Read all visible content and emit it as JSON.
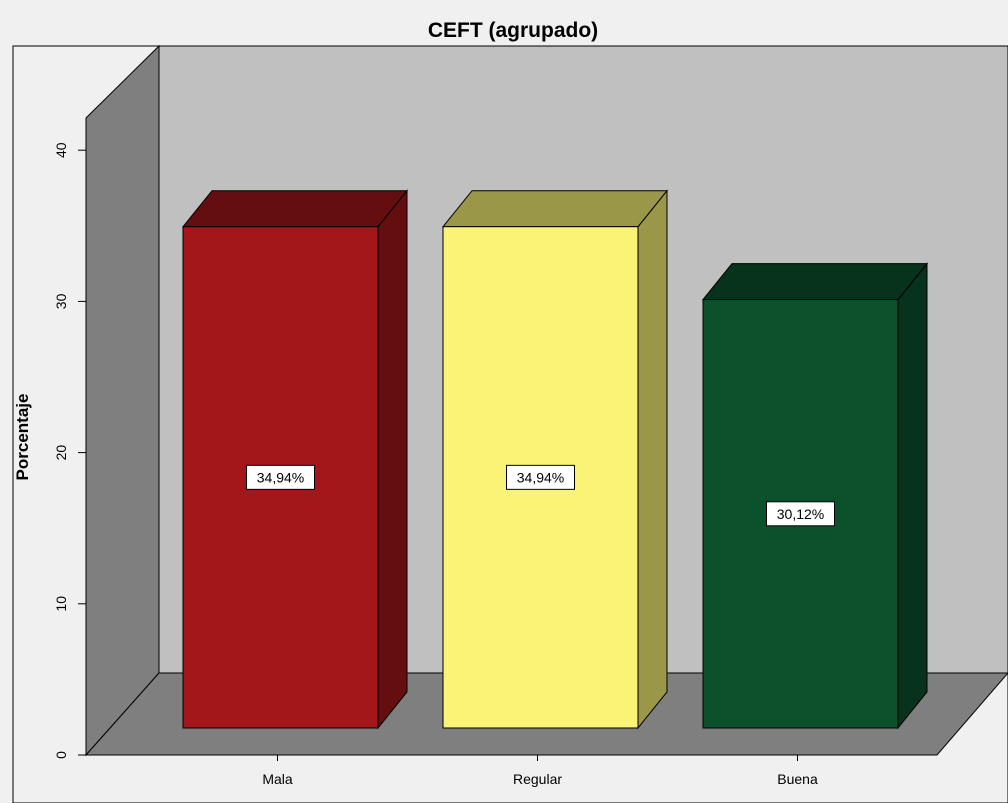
{
  "chart_data": {
    "type": "bar",
    "title": "CEFT (agrupado)",
    "xlabel": "",
    "ylabel": "Porcentaje",
    "categories": [
      "Mala",
      "Regular",
      "Buena"
    ],
    "values": [
      34.94,
      34.94,
      30.12
    ],
    "data_labels": [
      "34,94%",
      "34,94%",
      "30,12%"
    ],
    "yticks": [
      0,
      10,
      20,
      30,
      40
    ],
    "ylim": [
      0,
      45
    ],
    "grid": false,
    "legend": "none",
    "style": "3d",
    "colors": {
      "Mala": "#a3161a",
      "Regular": "#f9f475",
      "Buena": "#0b512b",
      "back_wall": "#c0c0c0",
      "side_wall": "#7f7f7f",
      "floor": "#7f7f7f",
      "background": "#f0f0f0"
    }
  }
}
